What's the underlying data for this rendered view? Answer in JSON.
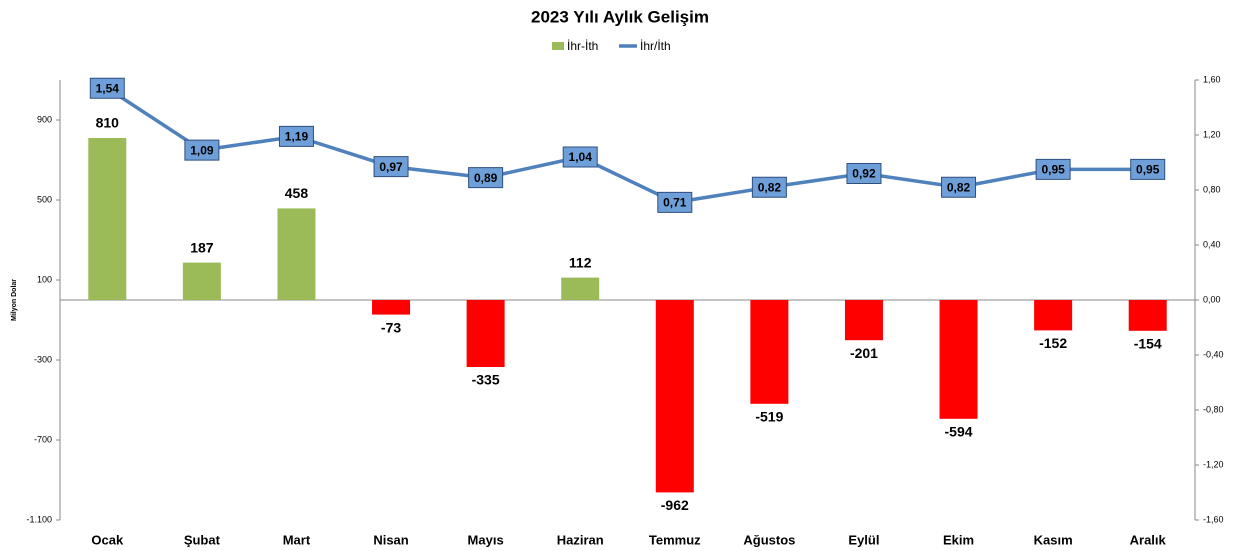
{
  "chart_data": {
    "type": "bar_line",
    "title": "2023 Yılı Aylık Gelişim",
    "ylabel": "Milyon Dolar",
    "categories": [
      "Ocak",
      "Şubat",
      "Mart",
      "Nisan",
      "Mayıs",
      "Haziran",
      "Temmuz",
      "Ağustos",
      "Eylül",
      "Ekim",
      "Kasım",
      "Aralık"
    ],
    "series": [
      {
        "name": "İhr-İth",
        "type": "bar",
        "color": "#9bbb59",
        "negative_color": "#ff0000",
        "values": [
          810,
          187,
          458,
          -73,
          -335,
          112,
          -962,
          -519,
          -201,
          -594,
          -152,
          -154
        ]
      },
      {
        "name": "İhr/İth",
        "type": "line",
        "axis": "y2",
        "color": "#4f81bd",
        "values": [
          1.54,
          1.09,
          1.19,
          0.97,
          0.89,
          1.04,
          0.71,
          0.82,
          0.92,
          0.82,
          0.95,
          0.95
        ],
        "value_labels": [
          "1,54",
          "1,09",
          "1,19",
          "0,97",
          "0,89",
          "1,04",
          "0,71",
          "0,82",
          "0,92",
          "0,82",
          "0,95",
          "0,95"
        ]
      }
    ],
    "ylim": [
      -1100,
      1100
    ],
    "yticks": [
      {
        "value": -1100,
        "label": "-1.100"
      },
      -700,
      -300,
      100,
      500,
      900
    ],
    "y2lim": [
      -1.6,
      1.6
    ],
    "y2ticks": [
      {
        "value": -1.6,
        "label": "-1,60"
      },
      {
        "value": -1.2,
        "label": "-1,20"
      },
      {
        "value": -0.8,
        "label": "-0,80"
      },
      {
        "value": -0.4,
        "label": "-0,40"
      },
      {
        "value": 0,
        "label": "0,00"
      },
      {
        "value": 0.4,
        "label": "0,40"
      },
      {
        "value": 0.8,
        "label": "0,80"
      },
      {
        "value": 1.2,
        "label": "1,20"
      },
      {
        "value": 1.6,
        "label": "1,60"
      }
    ],
    "legend": "top"
  }
}
